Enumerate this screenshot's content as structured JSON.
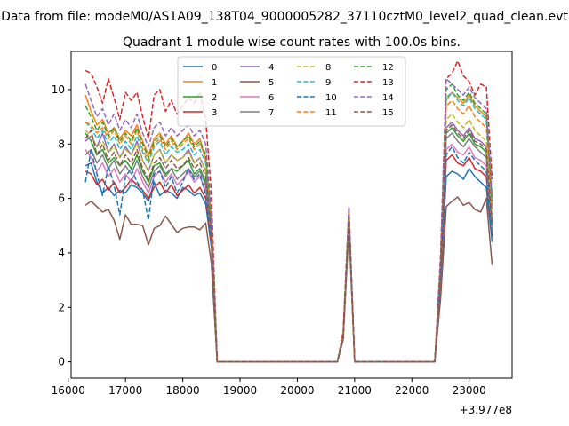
{
  "figure": {
    "suptitle": "Data from file: modeM0/AS1A09_138T04_9000005282_37110cztM0_level2_quad_clean.evt"
  },
  "chart_data": {
    "type": "line",
    "title": "Quadrant 1 module wise count rates with 100.0s bins.",
    "xlabel": "",
    "ylabel": "",
    "x_offset_label": "+3.977e8",
    "xlim": [
      16050,
      23750
    ],
    "ylim": [
      -0.6,
      11.4
    ],
    "xticks": [
      16000,
      17000,
      18000,
      19000,
      20000,
      21000,
      22000,
      23000
    ],
    "yticks": [
      0,
      2,
      4,
      6,
      8,
      10
    ],
    "grid": false,
    "legend": {
      "placement": "top-center",
      "ncol": 4
    },
    "x": [
      16300,
      16400,
      16500,
      16600,
      16700,
      16800,
      16900,
      17000,
      17100,
      17200,
      17300,
      17400,
      17500,
      17600,
      17700,
      17800,
      17900,
      18000,
      18100,
      18200,
      18300,
      18400,
      18500,
      18600,
      18700,
      18800,
      18900,
      19000,
      19100,
      19200,
      19300,
      19400,
      19500,
      19600,
      19700,
      19800,
      19900,
      20000,
      20100,
      20200,
      20300,
      20400,
      20500,
      20600,
      20700,
      20800,
      20900,
      21000,
      21100,
      21200,
      21300,
      21400,
      21500,
      21600,
      21700,
      21800,
      21900,
      22000,
      22100,
      22200,
      22300,
      22400,
      22500,
      22600,
      22700,
      22800,
      22900,
      23000,
      23100,
      23200,
      23300,
      23400
    ],
    "series": [
      {
        "name": "0",
        "color": "#1f77b4",
        "dash": false,
        "values": [
          7.2,
          7.3,
          6.6,
          6.2,
          6.4,
          6.1,
          6.3,
          6.2,
          6.5,
          6.4,
          6.2,
          5.9,
          6.6,
          6.1,
          6.3,
          6.2,
          6.0,
          6.4,
          6.3,
          6.1,
          6.2,
          5.8,
          4.2,
          0,
          0,
          0,
          0,
          0,
          0,
          0,
          0,
          0,
          0,
          0,
          0,
          0,
          0,
          0,
          0,
          0,
          0,
          0,
          0,
          0,
          0,
          0.9,
          5.3,
          0,
          0,
          0,
          0,
          0,
          0,
          0,
          0,
          0,
          0,
          0,
          0,
          0,
          0,
          0,
          2.8,
          6.8,
          7.0,
          6.9,
          6.7,
          7.1,
          6.8,
          6.6,
          6.4,
          4.4
        ]
      },
      {
        "name": "1",
        "color": "#ff7f0e",
        "dash": false,
        "values": [
          9.8,
          9.2,
          8.7,
          8.9,
          8.4,
          8.6,
          8.2,
          8.5,
          8.3,
          8.7,
          8.1,
          7.6,
          8.2,
          8.4,
          8.0,
          8.3,
          7.9,
          8.1,
          8.4,
          8.0,
          8.2,
          7.4,
          5.3,
          0,
          0,
          0,
          0,
          0,
          0,
          0,
          0,
          0,
          0,
          0,
          0,
          0,
          0,
          0,
          0,
          0,
          0,
          0,
          0,
          0,
          0,
          1.0,
          5.5,
          0,
          0,
          0,
          0,
          0,
          0,
          0,
          0,
          0,
          0,
          0,
          0,
          0,
          0,
          0,
          3.5,
          9.6,
          9.9,
          9.7,
          9.5,
          9.8,
          9.4,
          9.2,
          9.0,
          5.6
        ]
      },
      {
        "name": "2",
        "color": "#2ca02c",
        "dash": false,
        "values": [
          8.4,
          8.1,
          7.6,
          7.8,
          7.3,
          7.5,
          7.2,
          7.4,
          7.1,
          7.6,
          7.0,
          6.6,
          7.2,
          7.3,
          6.9,
          7.1,
          7.0,
          7.2,
          7.4,
          6.9,
          7.1,
          6.6,
          4.7,
          0,
          0,
          0,
          0,
          0,
          0,
          0,
          0,
          0,
          0,
          0,
          0,
          0,
          0,
          0,
          0,
          0,
          0,
          0,
          0,
          0,
          0,
          0.9,
          5.2,
          0,
          0,
          0,
          0,
          0,
          0,
          0,
          0,
          0,
          0,
          0,
          0,
          0,
          0,
          0,
          3.1,
          8.4,
          8.6,
          8.3,
          8.1,
          8.4,
          8.0,
          7.9,
          7.7,
          5.0
        ]
      },
      {
        "name": "3",
        "color": "#d62728",
        "dash": false,
        "values": [
          7.0,
          6.9,
          6.5,
          6.7,
          6.3,
          6.6,
          6.2,
          6.4,
          6.7,
          6.5,
          6.3,
          6.0,
          6.4,
          6.6,
          6.2,
          6.5,
          6.1,
          6.3,
          6.5,
          6.2,
          6.4,
          6.0,
          4.4,
          0,
          0,
          0,
          0,
          0,
          0,
          0,
          0,
          0,
          0,
          0,
          0,
          0,
          0,
          0,
          0,
          0,
          0,
          0,
          0,
          0,
          0,
          0.9,
          5.2,
          0,
          0,
          0,
          0,
          0,
          0,
          0,
          0,
          0,
          0,
          0,
          0,
          0,
          0,
          0,
          2.9,
          7.4,
          7.6,
          7.3,
          7.2,
          7.5,
          7.1,
          7.0,
          6.8,
          4.7
        ]
      },
      {
        "name": "4",
        "color": "#9467bd",
        "dash": false,
        "values": [
          8.1,
          8.3,
          7.9,
          8.4,
          7.7,
          8.0,
          7.5,
          7.9,
          7.6,
          8.1,
          7.4,
          7.0,
          7.6,
          7.8,
          7.3,
          7.6,
          7.4,
          7.5,
          7.8,
          7.3,
          7.5,
          7.0,
          5.0,
          0,
          0,
          0,
          0,
          0,
          0,
          0,
          0,
          0,
          0,
          0,
          0,
          0,
          0,
          0,
          0,
          0,
          0,
          0,
          0,
          0,
          0,
          1.0,
          5.4,
          0,
          0,
          0,
          0,
          0,
          0,
          0,
          0,
          0,
          0,
          0,
          0,
          0,
          0,
          0,
          3.2,
          8.6,
          8.8,
          8.5,
          8.3,
          8.6,
          8.2,
          8.1,
          7.9,
          5.1
        ]
      },
      {
        "name": "5",
        "color": "#8c564b",
        "dash": false,
        "values": [
          5.75,
          5.9,
          5.7,
          5.5,
          5.6,
          5.2,
          4.5,
          5.4,
          5.05,
          5.05,
          5.0,
          4.3,
          4.9,
          5.0,
          5.35,
          5.05,
          4.75,
          4.9,
          4.95,
          4.95,
          4.85,
          5.1,
          3.6,
          0,
          0,
          0,
          0,
          0,
          0,
          0,
          0,
          0,
          0,
          0,
          0,
          0,
          0,
          0,
          0,
          0,
          0,
          0,
          0,
          0,
          0,
          0.8,
          4.9,
          0,
          0,
          0,
          0,
          0,
          0,
          0,
          0,
          0,
          0,
          0,
          0,
          0,
          0,
          0,
          2.3,
          5.7,
          5.9,
          6.05,
          5.75,
          5.85,
          5.6,
          5.5,
          6.0,
          3.55
        ]
      },
      {
        "name": "6",
        "color": "#e377c2",
        "dash": false,
        "values": [
          7.8,
          7.5,
          7.0,
          7.3,
          6.8,
          7.1,
          6.6,
          6.9,
          6.6,
          7.1,
          6.6,
          6.2,
          6.8,
          7.0,
          6.6,
          6.9,
          6.5,
          6.7,
          7.0,
          6.6,
          6.8,
          6.3,
          4.6,
          0,
          0,
          0,
          0,
          0,
          0,
          0,
          0,
          0,
          0,
          0,
          0,
          0,
          0,
          0,
          0,
          0,
          0,
          0,
          0,
          0,
          0,
          0.9,
          5.2,
          0,
          0,
          0,
          0,
          0,
          0,
          0,
          0,
          0,
          0,
          0,
          0,
          0,
          0,
          0,
          3.0,
          7.8,
          8.0,
          7.7,
          7.6,
          7.9,
          7.5,
          7.4,
          7.2,
          4.8
        ]
      },
      {
        "name": "7",
        "color": "#7f7f7f",
        "dash": false,
        "values": [
          7.6,
          7.8,
          7.3,
          7.6,
          7.1,
          7.4,
          6.9,
          7.2,
          6.9,
          7.4,
          6.8,
          6.4,
          7.0,
          7.2,
          6.8,
          7.1,
          6.7,
          6.9,
          7.1,
          6.8,
          7.0,
          6.5,
          4.7,
          0,
          0,
          0,
          0,
          0,
          0,
          0,
          0,
          0,
          0,
          0,
          0,
          0,
          0,
          0,
          0,
          0,
          0,
          0,
          0,
          0,
          0,
          0.9,
          5.3,
          0,
          0,
          0,
          0,
          0,
          0,
          0,
          0,
          0,
          0,
          0,
          0,
          0,
          0,
          0,
          3.1,
          8.2,
          8.4,
          8.1,
          7.9,
          8.2,
          7.9,
          7.7,
          7.5,
          5.0
        ]
      },
      {
        "name": "8",
        "color": "#bcbd22",
        "dash": true,
        "values": [
          8.5,
          8.3,
          7.9,
          8.1,
          7.7,
          7.9,
          7.5,
          7.8,
          7.6,
          8.0,
          7.4,
          7.0,
          7.6,
          7.8,
          7.3,
          7.6,
          7.4,
          7.5,
          7.7,
          7.3,
          7.5,
          7.0,
          5.0,
          0,
          0,
          0,
          0,
          0,
          0,
          0,
          0,
          0,
          0,
          0,
          0,
          0,
          0,
          0,
          0,
          0,
          0,
          0,
          0,
          0,
          0,
          1.0,
          5.4,
          0,
          0,
          0,
          0,
          0,
          0,
          0,
          0,
          0,
          0,
          0,
          0,
          0,
          0,
          0,
          3.3,
          8.9,
          9.1,
          8.8,
          8.6,
          8.9,
          8.5,
          8.3,
          8.1,
          5.3
        ]
      },
      {
        "name": "9",
        "color": "#17becf",
        "dash": true,
        "values": [
          8.8,
          8.6,
          8.2,
          8.5,
          8.0,
          8.3,
          7.8,
          8.1,
          7.8,
          8.3,
          7.7,
          7.3,
          7.9,
          8.1,
          7.6,
          7.9,
          7.7,
          7.8,
          8.0,
          7.6,
          7.8,
          7.3,
          5.1,
          0,
          0,
          0,
          0,
          0,
          0,
          0,
          0,
          0,
          0,
          0,
          0,
          0,
          0,
          0,
          0,
          0,
          0,
          0,
          0,
          0,
          0,
          1.0,
          5.5,
          0,
          0,
          0,
          0,
          0,
          0,
          0,
          0,
          0,
          0,
          0,
          0,
          0,
          0,
          0,
          3.6,
          9.7,
          9.9,
          9.6,
          9.4,
          9.7,
          9.3,
          9.1,
          8.9,
          5.8
        ]
      },
      {
        "name": "10",
        "color": "#1f77b4",
        "dash": true,
        "values": [
          6.6,
          7.8,
          6.9,
          6.1,
          7.2,
          6.5,
          5.4,
          6.8,
          7.1,
          6.6,
          6.3,
          5.2,
          6.9,
          7.0,
          6.4,
          6.8,
          6.2,
          6.6,
          7.1,
          6.7,
          6.9,
          6.1,
          4.5,
          0,
          0,
          0,
          0,
          0,
          0,
          0,
          0,
          0,
          0,
          0,
          0,
          0,
          0,
          0,
          0,
          0,
          0,
          0,
          0,
          0,
          0,
          0.9,
          5.2,
          0,
          0,
          0,
          0,
          0,
          0,
          0,
          0,
          0,
          0,
          0,
          0,
          0,
          0,
          0,
          3.0,
          7.6,
          7.9,
          7.5,
          7.3,
          7.7,
          7.4,
          7.2,
          7.0,
          4.6
        ]
      },
      {
        "name": "11",
        "color": "#ff7f0e",
        "dash": true,
        "values": [
          8.8,
          8.7,
          8.4,
          8.6,
          8.2,
          8.5,
          8.0,
          8.3,
          8.0,
          8.5,
          7.8,
          7.4,
          8.0,
          8.2,
          7.8,
          8.1,
          7.8,
          8.0,
          8.2,
          7.8,
          8.0,
          7.5,
          5.2,
          0,
          0,
          0,
          0,
          0,
          0,
          0,
          0,
          0,
          0,
          0,
          0,
          0,
          0,
          0,
          0,
          0,
          0,
          0,
          0,
          0,
          0,
          1.0,
          5.5,
          0,
          0,
          0,
          0,
          0,
          0,
          0,
          0,
          0,
          0,
          0,
          0,
          0,
          0,
          0,
          3.5,
          9.4,
          9.6,
          9.3,
          9.1,
          9.4,
          9.0,
          8.8,
          8.6,
          5.6
        ]
      },
      {
        "name": "12",
        "color": "#2ca02c",
        "dash": true,
        "values": [
          9.4,
          9.0,
          8.5,
          8.8,
          8.3,
          8.6,
          8.1,
          8.4,
          8.1,
          8.6,
          8.0,
          7.5,
          8.1,
          8.3,
          7.9,
          8.2,
          7.9,
          8.1,
          8.3,
          7.9,
          8.1,
          7.6,
          5.3,
          0,
          0,
          0,
          0,
          0,
          0,
          0,
          0,
          0,
          0,
          0,
          0,
          0,
          0,
          0,
          0,
          0,
          0,
          0,
          0,
          0,
          0,
          1.0,
          5.6,
          0,
          0,
          0,
          0,
          0,
          0,
          0,
          0,
          0,
          0,
          0,
          0,
          0,
          0,
          0,
          3.6,
          10.0,
          10.2,
          9.8,
          9.6,
          9.9,
          9.5,
          9.3,
          9.1,
          5.9
        ]
      },
      {
        "name": "13",
        "color": "#d62728",
        "dash": true,
        "values": [
          10.7,
          10.6,
          10.1,
          9.5,
          10.4,
          9.7,
          8.9,
          9.9,
          9.6,
          9.9,
          9.0,
          8.2,
          9.8,
          10.0,
          9.2,
          9.6,
          9.1,
          9.4,
          9.7,
          9.5,
          9.9,
          8.9,
          6.2,
          0,
          0,
          0,
          0,
          0,
          0,
          0,
          0,
          0,
          0,
          0,
          0,
          0,
          0,
          0,
          0,
          0,
          0,
          0,
          0,
          0,
          0,
          1.1,
          5.7,
          0,
          0,
          0,
          0,
          0,
          0,
          0,
          0,
          0,
          0,
          0,
          0,
          0,
          0,
          0,
          3.9,
          10.4,
          10.6,
          11.05,
          10.5,
          10.3,
          9.8,
          10.2,
          10.1,
          6.7
        ]
      },
      {
        "name": "14",
        "color": "#9467bd",
        "dash": true,
        "values": [
          10.2,
          9.6,
          9.0,
          9.3,
          8.7,
          9.1,
          8.5,
          8.9,
          8.6,
          9.1,
          8.4,
          7.9,
          8.6,
          8.8,
          8.3,
          8.6,
          8.3,
          8.5,
          8.7,
          8.3,
          8.5,
          8.0,
          5.6,
          0,
          0,
          0,
          0,
          0,
          0,
          0,
          0,
          0,
          0,
          0,
          0,
          0,
          0,
          0,
          0,
          0,
          0,
          0,
          0,
          0,
          0,
          1.0,
          5.7,
          0,
          0,
          0,
          0,
          0,
          0,
          0,
          0,
          0,
          0,
          0,
          0,
          0,
          0,
          0,
          3.8,
          10.4,
          10.2,
          10.0,
          9.8,
          10.1,
          9.7,
          9.5,
          9.3,
          6.1
        ]
      },
      {
        "name": "15",
        "color": "#8c564b",
        "dash": true,
        "values": [
          8.2,
          8.5,
          7.6,
          8.0,
          7.4,
          7.7,
          7.2,
          7.6,
          7.3,
          7.8,
          7.1,
          6.7,
          7.3,
          7.5,
          7.1,
          7.4,
          7.1,
          7.2,
          7.5,
          7.1,
          7.3,
          6.8,
          4.8,
          0,
          0,
          0,
          0,
          0,
          0,
          0,
          0,
          0,
          0,
          0,
          0,
          0,
          0,
          0,
          0,
          0,
          0,
          0,
          0,
          0,
          0,
          0.9,
          5.3,
          0,
          0,
          0,
          0,
          0,
          0,
          0,
          0,
          0,
          0,
          0,
          0,
          0,
          0,
          0,
          3.2,
          8.5,
          8.7,
          8.4,
          8.2,
          8.5,
          8.1,
          8.0,
          7.8,
          5.1
        ]
      }
    ]
  }
}
